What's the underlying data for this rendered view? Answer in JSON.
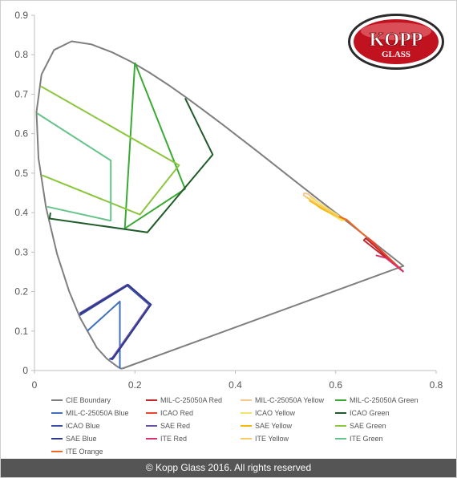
{
  "chart_data": {
    "type": "line",
    "title": "",
    "xlabel": "",
    "ylabel": "",
    "xlim": [
      0,
      0.8
    ],
    "ylim": [
      0,
      0.9
    ],
    "xticks": [
      0,
      0.2,
      0.4,
      0.6,
      0.8
    ],
    "yticks": [
      0,
      0.1,
      0.2,
      0.3,
      0.4,
      0.5,
      0.6,
      0.7,
      0.8,
      0.9
    ],
    "xtick_labels": [
      "0",
      "0.2",
      "0.4",
      "0.6",
      "0.8"
    ],
    "ytick_labels": [
      "0",
      "0.1",
      "0.2",
      "0.3",
      "0.4",
      "0.5",
      "0.6",
      "0.7",
      "0.8",
      "0.9"
    ],
    "grid": false,
    "legend_position": "bottom",
    "series": [
      {
        "name": "CIE Boundary",
        "color": "#7f7f7f",
        "x": [
          0.175,
          0.172,
          0.165,
          0.144,
          0.124,
          0.091,
          0.069,
          0.045,
          0.023,
          0.008,
          0.004,
          0.014,
          0.039,
          0.074,
          0.114,
          0.155,
          0.193,
          0.23,
          0.266,
          0.302,
          0.337,
          0.374,
          0.444,
          0.512,
          0.575,
          0.627,
          0.666,
          0.692,
          0.735,
          0.175
        ],
        "y": [
          0.005,
          0.005,
          0.01,
          0.03,
          0.058,
          0.133,
          0.201,
          0.295,
          0.413,
          0.538,
          0.655,
          0.75,
          0.812,
          0.834,
          0.826,
          0.806,
          0.782,
          0.754,
          0.724,
          0.692,
          0.659,
          0.624,
          0.555,
          0.487,
          0.424,
          0.373,
          0.334,
          0.308,
          0.265,
          0.005
        ]
      },
      {
        "name": "MIL-C-25050A Red",
        "color": "#c0272d",
        "x": [
          0.735,
          0.656,
          0.66,
          0.735
        ],
        "y": [
          0.25,
          0.33,
          0.335,
          0.25
        ]
      },
      {
        "name": "MIL-C-25050A Yellow",
        "color": "#f7c78d",
        "x": [
          0.537,
          0.545,
          0.601,
          0.536,
          0.537
        ],
        "y": [
          0.45,
          0.447,
          0.39,
          0.444,
          0.45
        ]
      },
      {
        "name": "MIL-C-25050A Green",
        "color": "#3aaa35",
        "x": [
          0.2,
          0.3,
          0.18,
          0.2
        ],
        "y": [
          0.78,
          0.46,
          0.36,
          0.78
        ]
      },
      {
        "name": "MIL-C-25050A Blue",
        "color": "#3f6fbf",
        "x": [
          0.105,
          0.17,
          0.17
        ],
        "y": [
          0.1,
          0.175,
          0.005
        ]
      },
      {
        "name": "ICAO Red",
        "color": "#e8472b",
        "x": [
          0.68,
          0.665,
          0.735
        ],
        "y": [
          0.32,
          0.335,
          0.25
        ]
      },
      {
        "name": "ICAO Yellow",
        "color": "#f4e46b",
        "x": [
          0.548,
          0.618,
          0.612,
          0.548
        ],
        "y": [
          0.44,
          0.382,
          0.38,
          0.43
        ]
      },
      {
        "name": "ICAO Green",
        "color": "#1f5c2a",
        "x": [
          0.3,
          0.355,
          0.225,
          0.03,
          0.032
        ],
        "y": [
          0.69,
          0.547,
          0.35,
          0.385,
          0.4
        ]
      },
      {
        "name": "ICAO Blue",
        "color": "#3b4fa8",
        "x": [
          0.09,
          0.185,
          0.23,
          0.155,
          0.149
        ],
        "y": [
          0.14,
          0.215,
          0.165,
          0.028,
          0.03
        ]
      },
      {
        "name": "SAE Red",
        "color": "#6a50a7",
        "x": [
          0.09,
          0.185,
          0.23,
          0.155
        ],
        "y": [
          0.145,
          0.218,
          0.168,
          0.032
        ]
      },
      {
        "name": "SAE Yellow",
        "color": "#f5b800",
        "x": [
          0.55,
          0.572,
          0.618,
          0.548,
          0.55
        ],
        "y": [
          0.43,
          0.41,
          0.382,
          0.43,
          0.43
        ]
      },
      {
        "name": "SAE Green",
        "color": "#8cc63f",
        "x": [
          0.013,
          0.288,
          0.21,
          0.015
        ],
        "y": [
          0.72,
          0.52,
          0.395,
          0.495
        ]
      },
      {
        "name": "SAE Blue",
        "color": "#2e3a8c",
        "x": [
          0.09,
          0.187,
          0.232,
          0.158,
          0.151
        ],
        "y": [
          0.143,
          0.217,
          0.167,
          0.033,
          0.03
        ]
      },
      {
        "name": "ITE Red",
        "color": "#d6336c",
        "x": [
          0.68,
          0.7,
          0.735
        ],
        "y": [
          0.292,
          0.285,
          0.25
        ]
      },
      {
        "name": "ITE Yellow",
        "color": "#f9c96a",
        "x": [
          0.54,
          0.568,
          0.606
        ],
        "y": [
          0.44,
          0.418,
          0.39
        ]
      },
      {
        "name": "ITE Green",
        "color": "#66c38a",
        "x": [
          0.005,
          0.152,
          0.152,
          0.15,
          0.025
        ],
        "y": [
          0.652,
          0.532,
          0.38,
          0.38,
          0.415
        ]
      },
      {
        "name": "ITE Orange",
        "color": "#f26522",
        "x": [
          0.607,
          0.622,
          0.655,
          0.662
        ],
        "y": [
          0.39,
          0.382,
          0.345,
          0.338
        ]
      }
    ]
  },
  "logo": {
    "line1": "KOPP",
    "line2": "GLASS",
    "color": "#c1121f"
  },
  "footer": {
    "text": "© Kopp Glass 2016. All rights reserved"
  }
}
